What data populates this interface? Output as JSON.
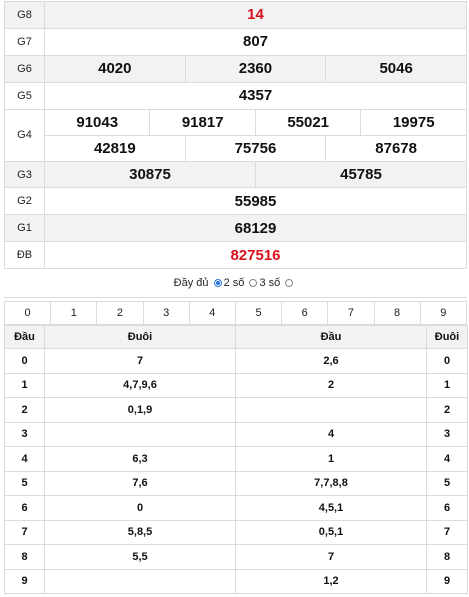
{
  "results": [
    {
      "label": "G8",
      "nums": [
        "14"
      ],
      "red": true
    },
    {
      "label": "G7",
      "nums": [
        "807"
      ]
    },
    {
      "label": "G6",
      "nums": [
        "4020",
        "2360",
        "5046"
      ]
    },
    {
      "label": "G5",
      "nums": [
        "4357"
      ]
    },
    {
      "label": "G4",
      "row1": [
        "91043",
        "91817",
        "55021",
        "19975"
      ],
      "row2": [
        "42819",
        "75756",
        "87678"
      ]
    },
    {
      "label": "G3",
      "nums": [
        "30875",
        "45785"
      ]
    },
    {
      "label": "G2",
      "nums": [
        "55985"
      ]
    },
    {
      "label": "G1",
      "nums": [
        "68129"
      ]
    },
    {
      "label": "ĐB",
      "nums": [
        "827516"
      ],
      "red": true
    }
  ],
  "options": {
    "full": "Đầy đủ",
    "two": "2 số",
    "three": "3 số",
    "selected": "2 số"
  },
  "digits": [
    "0",
    "1",
    "2",
    "3",
    "4",
    "5",
    "6",
    "7",
    "8",
    "9"
  ],
  "loto": {
    "headers": [
      "Đầu",
      "Đuôi",
      "Đầu",
      "Đuôi"
    ],
    "rows": [
      {
        "d": "0",
        "duoi": "7",
        "dau": "2,6",
        "t": "0"
      },
      {
        "d": "1",
        "duoi": "4,7,9,6",
        "dau": "2",
        "t": "1"
      },
      {
        "d": "2",
        "duoi": "0,1,9",
        "dau": "",
        "t": "2"
      },
      {
        "d": "3",
        "duoi": "",
        "dau": "4",
        "t": "3"
      },
      {
        "d": "4",
        "duoi": "6,3",
        "dau": "1",
        "t": "4"
      },
      {
        "d": "5",
        "duoi": "7,6",
        "dau": "7,7,8,8",
        "t": "5"
      },
      {
        "d": "6",
        "duoi": "0",
        "dau": "4,5,1",
        "t": "6"
      },
      {
        "d": "7",
        "duoi": "5,8,5",
        "dau": "0,5,1",
        "t": "7"
      },
      {
        "d": "8",
        "duoi": "5,5",
        "dau": "7",
        "t": "8"
      },
      {
        "d": "9",
        "duoi": "",
        "dau": "1,2",
        "t": "9"
      }
    ]
  }
}
